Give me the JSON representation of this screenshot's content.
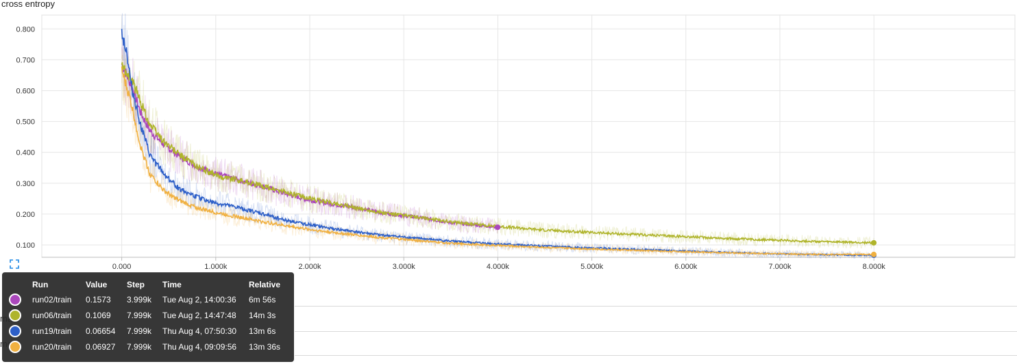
{
  "chart_data": {
    "type": "line",
    "title": "cross entropy",
    "xlabel": "",
    "ylabel": "",
    "xlim": [
      -0.85,
      9.5
    ],
    "ylim": [
      0.06,
      0.845
    ],
    "x_ticks": [
      0,
      1,
      2,
      3,
      4,
      5,
      6,
      7,
      8
    ],
    "x_tick_labels": [
      "0.000",
      "1.000k",
      "2.000k",
      "3.000k",
      "4.000k",
      "5.000k",
      "6.000k",
      "7.000k",
      "8.000k"
    ],
    "y_ticks": [
      0.1,
      0.2,
      0.3,
      0.4,
      0.5,
      0.6,
      0.7,
      0.8
    ],
    "y_tick_labels": [
      "0.100",
      "0.200",
      "0.300",
      "0.400",
      "0.500",
      "0.600",
      "0.700",
      "0.800"
    ],
    "x_unit": "thousand steps",
    "grid": true,
    "series": [
      {
        "name": "run02/train",
        "color": "#ab47bc",
        "x": [
          0.0,
          0.1,
          0.2,
          0.3,
          0.45,
          0.6,
          0.8,
          1.0,
          1.25,
          1.5,
          1.75,
          2.0,
          2.25,
          2.5,
          2.75,
          3.0,
          3.25,
          3.5,
          3.75,
          3.999
        ],
        "values": [
          0.685,
          0.62,
          0.53,
          0.47,
          0.425,
          0.39,
          0.355,
          0.33,
          0.31,
          0.29,
          0.265,
          0.245,
          0.232,
          0.22,
          0.205,
          0.195,
          0.185,
          0.172,
          0.165,
          0.1573
        ]
      },
      {
        "name": "run06/train",
        "color": "#afb42b",
        "x": [
          0.0,
          0.1,
          0.2,
          0.3,
          0.45,
          0.6,
          0.8,
          1.0,
          1.25,
          1.5,
          1.75,
          2.0,
          2.25,
          2.5,
          2.75,
          3.0,
          3.5,
          4.0,
          4.5,
          5.0,
          5.5,
          6.0,
          6.5,
          7.0,
          7.5,
          7.999
        ],
        "values": [
          0.68,
          0.64,
          0.565,
          0.49,
          0.435,
          0.395,
          0.355,
          0.325,
          0.31,
          0.29,
          0.27,
          0.25,
          0.235,
          0.22,
          0.205,
          0.195,
          0.175,
          0.16,
          0.148,
          0.14,
          0.133,
          0.127,
          0.12,
          0.115,
          0.11,
          0.1069
        ]
      },
      {
        "name": "run19/train",
        "color": "#2d5fc8",
        "x": [
          0.0,
          0.05,
          0.1,
          0.2,
          0.3,
          0.45,
          0.6,
          0.8,
          1.0,
          1.25,
          1.5,
          1.75,
          2.0,
          2.25,
          2.5,
          2.75,
          3.0,
          3.5,
          4.0,
          4.5,
          5.0,
          5.5,
          6.0,
          6.5,
          7.0,
          7.5,
          7.999
        ],
        "values": [
          0.79,
          0.73,
          0.62,
          0.49,
          0.39,
          0.33,
          0.285,
          0.255,
          0.235,
          0.22,
          0.2,
          0.18,
          0.165,
          0.152,
          0.142,
          0.132,
          0.125,
          0.112,
          0.103,
          0.096,
          0.09,
          0.085,
          0.08,
          0.075,
          0.071,
          0.068,
          0.06654
        ]
      },
      {
        "name": "run20/train",
        "color": "#f0b040",
        "x": [
          0.0,
          0.1,
          0.2,
          0.3,
          0.45,
          0.6,
          0.8,
          1.0,
          1.25,
          1.5,
          1.75,
          2.0,
          2.25,
          2.5,
          2.75,
          3.0,
          3.5,
          4.0,
          4.5,
          5.0,
          5.5,
          6.0,
          6.5,
          7.0,
          7.5,
          7.999
        ],
        "values": [
          0.665,
          0.56,
          0.42,
          0.33,
          0.275,
          0.245,
          0.22,
          0.205,
          0.19,
          0.175,
          0.162,
          0.15,
          0.14,
          0.132,
          0.124,
          0.118,
          0.105,
          0.098,
          0.092,
          0.087,
          0.082,
          0.078,
          0.074,
          0.071,
          0.069,
          0.06927
        ]
      }
    ]
  },
  "tooltip": {
    "headers": [
      "Run",
      "Value",
      "Step",
      "Time",
      "Relative"
    ],
    "rows": [
      {
        "run": "run02/train",
        "value": "0.1573",
        "step": "3.999k",
        "time": "Tue Aug 2, 14:00:36",
        "relative": "6m 56s",
        "color": "#ab47bc"
      },
      {
        "run": "run06/train",
        "value": "0.1069",
        "step": "7.999k",
        "time": "Tue Aug 2, 14:47:48",
        "relative": "14m 3s",
        "color": "#afb42b"
      },
      {
        "run": "run19/train",
        "value": "0.06654",
        "step": "7.999k",
        "time": "Thu Aug 4, 07:50:30",
        "relative": "13m 6s",
        "color": "#2d5fc8"
      },
      {
        "run": "run20/train",
        "value": "0.06927",
        "step": "7.999k",
        "time": "Thu Aug 4, 09:09:56",
        "relative": "13m 36s",
        "color": "#f0b040"
      }
    ]
  },
  "under_text": [
    "ma",
    "me"
  ],
  "icons": {
    "expand": "expand-icon"
  }
}
